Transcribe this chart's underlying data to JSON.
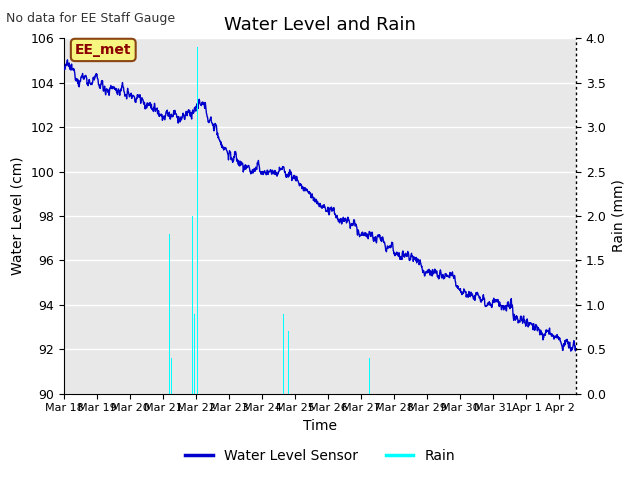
{
  "title": "Water Level and Rain",
  "top_left_text": "No data for EE Staff Gauge",
  "annotation_box": "EE_met",
  "xlabel": "Time",
  "ylabel_left": "Water Level (cm)",
  "ylabel_right": "Rain (mm)",
  "ylim_left": [
    90,
    106
  ],
  "ylim_right": [
    0.0,
    4.0
  ],
  "yticks_left": [
    90,
    92,
    94,
    96,
    98,
    100,
    102,
    104,
    106
  ],
  "yticks_right": [
    0.0,
    0.5,
    1.0,
    1.5,
    2.0,
    2.5,
    3.0,
    3.5,
    4.0
  ],
  "water_level_color": "#0000cc",
  "rain_color": "#00ffff",
  "background_color": "#e8e8e8",
  "legend_water": "Water Level Sensor",
  "legend_rain": "Rain",
  "grid_color": "#ffffff",
  "figwidth": 6.4,
  "figheight": 4.8,
  "dpi": 100
}
